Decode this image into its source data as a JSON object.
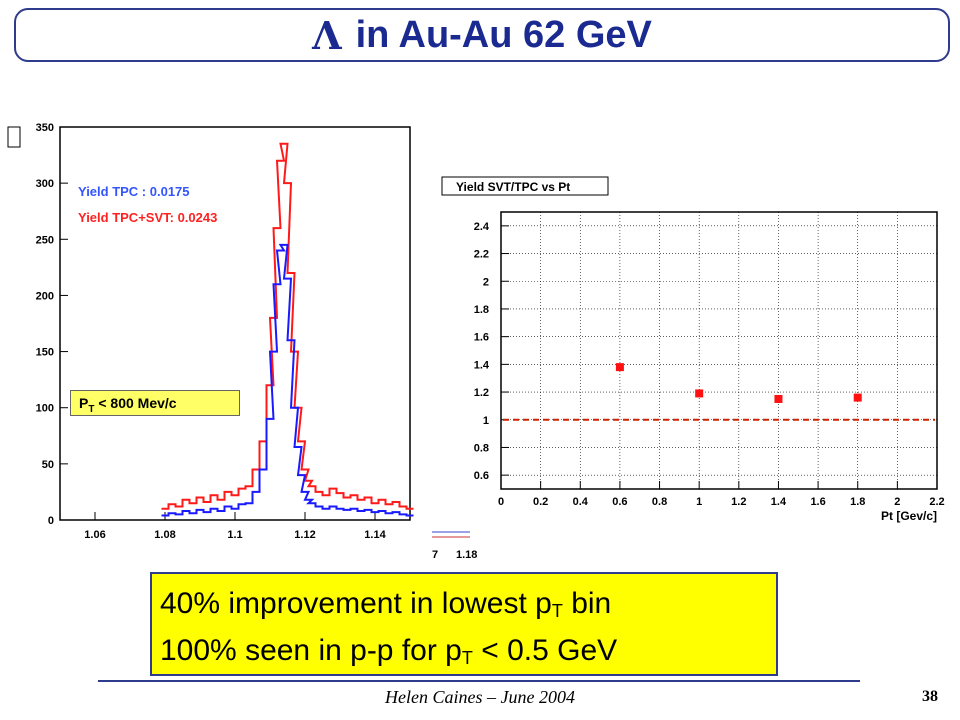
{
  "slide": {
    "title_symbol": "Λ",
    "title_text": "in Au-Au 62 GeV",
    "footer": "Helen Caines – June 2004",
    "page_number": "38"
  },
  "annotation": {
    "line1_pre": "40% improvement in lowest p",
    "line1_sub": "T",
    "line1_post": " bin",
    "line2_pre": "100% seen in p-p for p",
    "line2_sub": "T",
    "line2_post": " < 0.5 GeV"
  },
  "pt_label": {
    "pre": "P",
    "sub": "T",
    "post": " < 800 Mev/c"
  },
  "chart_data": [
    {
      "type": "line",
      "xlim": [
        1.05,
        1.15
      ],
      "ylim": [
        0,
        350
      ],
      "x_ticks": [
        1.06,
        1.08,
        1.1,
        1.12,
        1.14
      ],
      "x_tick_labels": [
        "1.06",
        "1.08",
        "1.1",
        "1.12",
        "1.14"
      ],
      "y_ticks": [
        0,
        50,
        100,
        150,
        200,
        250,
        300,
        350
      ],
      "stats": [
        {
          "label": "Yield TPC       : 0.0175",
          "color": "#3355ff"
        },
        {
          "label": "Yield TPC+SVT: 0.0243",
          "color": "#ff2222"
        }
      ],
      "series": [
        {
          "color": "#ff1a1a",
          "x": [
            1.08,
            1.082,
            1.084,
            1.086,
            1.088,
            1.09,
            1.092,
            1.094,
            1.096,
            1.098,
            1.1,
            1.102,
            1.104,
            1.106,
            1.108,
            1.11,
            1.111,
            1.112,
            1.113,
            1.114,
            1.115,
            1.116,
            1.117,
            1.118,
            1.119,
            1.12,
            1.121,
            1.122,
            1.124,
            1.126,
            1.128,
            1.13,
            1.132,
            1.134,
            1.136,
            1.138,
            1.14,
            1.142,
            1.144,
            1.146,
            1.148,
            1.15
          ],
          "y": [
            10,
            14,
            12,
            18,
            15,
            20,
            16,
            22,
            18,
            25,
            22,
            28,
            30,
            45,
            70,
            120,
            180,
            260,
            320,
            335,
            300,
            220,
            150,
            100,
            70,
            45,
            35,
            30,
            25,
            22,
            28,
            24,
            20,
            22,
            18,
            20,
            15,
            18,
            14,
            16,
            12,
            10
          ]
        },
        {
          "color": "#1a1aff",
          "x": [
            1.08,
            1.082,
            1.084,
            1.086,
            1.088,
            1.09,
            1.092,
            1.094,
            1.096,
            1.098,
            1.1,
            1.102,
            1.104,
            1.106,
            1.108,
            1.11,
            1.111,
            1.112,
            1.113,
            1.114,
            1.115,
            1.116,
            1.117,
            1.118,
            1.119,
            1.12,
            1.121,
            1.122,
            1.124,
            1.126,
            1.128,
            1.13,
            1.132,
            1.134,
            1.136,
            1.138,
            1.14,
            1.142,
            1.144,
            1.146,
            1.148,
            1.15
          ],
          "y": [
            4,
            6,
            5,
            8,
            6,
            9,
            7,
            10,
            8,
            12,
            10,
            14,
            15,
            25,
            45,
            90,
            150,
            210,
            240,
            245,
            215,
            160,
            100,
            65,
            40,
            25,
            18,
            15,
            12,
            10,
            12,
            10,
            9,
            10,
            8,
            9,
            7,
            8,
            6,
            7,
            5,
            4
          ]
        }
      ]
    },
    {
      "type": "scatter",
      "title": "Yield SVT/TPC vs Pt",
      "xlabel": "Pt [Gev/c]",
      "ylabel": "",
      "xlim": [
        0,
        2.2
      ],
      "ylim": [
        0.5,
        2.5
      ],
      "x_ticks": [
        0,
        0.2,
        0.4,
        0.6,
        0.8,
        1,
        1.2,
        1.4,
        1.6,
        1.8,
        2,
        2.2
      ],
      "x_tick_labels": [
        "0",
        "0.2",
        "0.4",
        "0.6",
        "0.8",
        "1",
        "1.2",
        "1.4",
        "1.6",
        "1.8",
        "2",
        "2.2"
      ],
      "y_ticks": [
        0.6,
        0.8,
        1,
        1.2,
        1.4,
        1.6,
        1.8,
        2,
        2.2,
        2.4
      ],
      "y_tick_labels": [
        "0.6",
        "0.8",
        "1",
        "1.2",
        "1.4",
        "1.6",
        "1.8",
        "2",
        "2.2",
        "2.4"
      ],
      "grid": true,
      "reference_line": 1.0,
      "points": [
        {
          "x": 0.6,
          "y": 1.38
        },
        {
          "x": 1.0,
          "y": 1.19
        },
        {
          "x": 1.4,
          "y": 1.15
        },
        {
          "x": 1.8,
          "y": 1.16
        }
      ],
      "marker_color": "#ff1111"
    }
  ]
}
